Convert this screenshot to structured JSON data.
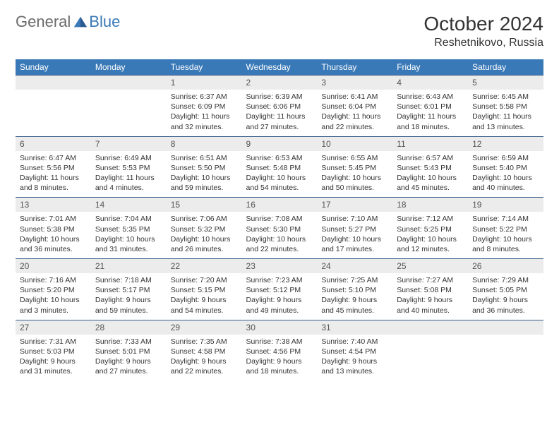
{
  "branding": {
    "part1": "General",
    "part2": "Blue"
  },
  "title": "October 2024",
  "location": "Reshetnikovo, Russia",
  "colors": {
    "header_bg": "#3a79b7",
    "header_text": "#ffffff",
    "daynum_bg": "#ececec",
    "text": "#333333"
  },
  "weekdays": [
    "Sunday",
    "Monday",
    "Tuesday",
    "Wednesday",
    "Thursday",
    "Friday",
    "Saturday"
  ],
  "weeks": [
    [
      null,
      null,
      {
        "n": "1",
        "sunrise": "Sunrise: 6:37 AM",
        "sunset": "Sunset: 6:09 PM",
        "day": "Daylight: 11 hours and 32 minutes."
      },
      {
        "n": "2",
        "sunrise": "Sunrise: 6:39 AM",
        "sunset": "Sunset: 6:06 PM",
        "day": "Daylight: 11 hours and 27 minutes."
      },
      {
        "n": "3",
        "sunrise": "Sunrise: 6:41 AM",
        "sunset": "Sunset: 6:04 PM",
        "day": "Daylight: 11 hours and 22 minutes."
      },
      {
        "n": "4",
        "sunrise": "Sunrise: 6:43 AM",
        "sunset": "Sunset: 6:01 PM",
        "day": "Daylight: 11 hours and 18 minutes."
      },
      {
        "n": "5",
        "sunrise": "Sunrise: 6:45 AM",
        "sunset": "Sunset: 5:58 PM",
        "day": "Daylight: 11 hours and 13 minutes."
      }
    ],
    [
      {
        "n": "6",
        "sunrise": "Sunrise: 6:47 AM",
        "sunset": "Sunset: 5:56 PM",
        "day": "Daylight: 11 hours and 8 minutes."
      },
      {
        "n": "7",
        "sunrise": "Sunrise: 6:49 AM",
        "sunset": "Sunset: 5:53 PM",
        "day": "Daylight: 11 hours and 4 minutes."
      },
      {
        "n": "8",
        "sunrise": "Sunrise: 6:51 AM",
        "sunset": "Sunset: 5:50 PM",
        "day": "Daylight: 10 hours and 59 minutes."
      },
      {
        "n": "9",
        "sunrise": "Sunrise: 6:53 AM",
        "sunset": "Sunset: 5:48 PM",
        "day": "Daylight: 10 hours and 54 minutes."
      },
      {
        "n": "10",
        "sunrise": "Sunrise: 6:55 AM",
        "sunset": "Sunset: 5:45 PM",
        "day": "Daylight: 10 hours and 50 minutes."
      },
      {
        "n": "11",
        "sunrise": "Sunrise: 6:57 AM",
        "sunset": "Sunset: 5:43 PM",
        "day": "Daylight: 10 hours and 45 minutes."
      },
      {
        "n": "12",
        "sunrise": "Sunrise: 6:59 AM",
        "sunset": "Sunset: 5:40 PM",
        "day": "Daylight: 10 hours and 40 minutes."
      }
    ],
    [
      {
        "n": "13",
        "sunrise": "Sunrise: 7:01 AM",
        "sunset": "Sunset: 5:38 PM",
        "day": "Daylight: 10 hours and 36 minutes."
      },
      {
        "n": "14",
        "sunrise": "Sunrise: 7:04 AM",
        "sunset": "Sunset: 5:35 PM",
        "day": "Daylight: 10 hours and 31 minutes."
      },
      {
        "n": "15",
        "sunrise": "Sunrise: 7:06 AM",
        "sunset": "Sunset: 5:32 PM",
        "day": "Daylight: 10 hours and 26 minutes."
      },
      {
        "n": "16",
        "sunrise": "Sunrise: 7:08 AM",
        "sunset": "Sunset: 5:30 PM",
        "day": "Daylight: 10 hours and 22 minutes."
      },
      {
        "n": "17",
        "sunrise": "Sunrise: 7:10 AM",
        "sunset": "Sunset: 5:27 PM",
        "day": "Daylight: 10 hours and 17 minutes."
      },
      {
        "n": "18",
        "sunrise": "Sunrise: 7:12 AM",
        "sunset": "Sunset: 5:25 PM",
        "day": "Daylight: 10 hours and 12 minutes."
      },
      {
        "n": "19",
        "sunrise": "Sunrise: 7:14 AM",
        "sunset": "Sunset: 5:22 PM",
        "day": "Daylight: 10 hours and 8 minutes."
      }
    ],
    [
      {
        "n": "20",
        "sunrise": "Sunrise: 7:16 AM",
        "sunset": "Sunset: 5:20 PM",
        "day": "Daylight: 10 hours and 3 minutes."
      },
      {
        "n": "21",
        "sunrise": "Sunrise: 7:18 AM",
        "sunset": "Sunset: 5:17 PM",
        "day": "Daylight: 9 hours and 59 minutes."
      },
      {
        "n": "22",
        "sunrise": "Sunrise: 7:20 AM",
        "sunset": "Sunset: 5:15 PM",
        "day": "Daylight: 9 hours and 54 minutes."
      },
      {
        "n": "23",
        "sunrise": "Sunrise: 7:23 AM",
        "sunset": "Sunset: 5:12 PM",
        "day": "Daylight: 9 hours and 49 minutes."
      },
      {
        "n": "24",
        "sunrise": "Sunrise: 7:25 AM",
        "sunset": "Sunset: 5:10 PM",
        "day": "Daylight: 9 hours and 45 minutes."
      },
      {
        "n": "25",
        "sunrise": "Sunrise: 7:27 AM",
        "sunset": "Sunset: 5:08 PM",
        "day": "Daylight: 9 hours and 40 minutes."
      },
      {
        "n": "26",
        "sunrise": "Sunrise: 7:29 AM",
        "sunset": "Sunset: 5:05 PM",
        "day": "Daylight: 9 hours and 36 minutes."
      }
    ],
    [
      {
        "n": "27",
        "sunrise": "Sunrise: 7:31 AM",
        "sunset": "Sunset: 5:03 PM",
        "day": "Daylight: 9 hours and 31 minutes."
      },
      {
        "n": "28",
        "sunrise": "Sunrise: 7:33 AM",
        "sunset": "Sunset: 5:01 PM",
        "day": "Daylight: 9 hours and 27 minutes."
      },
      {
        "n": "29",
        "sunrise": "Sunrise: 7:35 AM",
        "sunset": "Sunset: 4:58 PM",
        "day": "Daylight: 9 hours and 22 minutes."
      },
      {
        "n": "30",
        "sunrise": "Sunrise: 7:38 AM",
        "sunset": "Sunset: 4:56 PM",
        "day": "Daylight: 9 hours and 18 minutes."
      },
      {
        "n": "31",
        "sunrise": "Sunrise: 7:40 AM",
        "sunset": "Sunset: 4:54 PM",
        "day": "Daylight: 9 hours and 13 minutes."
      },
      null,
      null
    ]
  ]
}
